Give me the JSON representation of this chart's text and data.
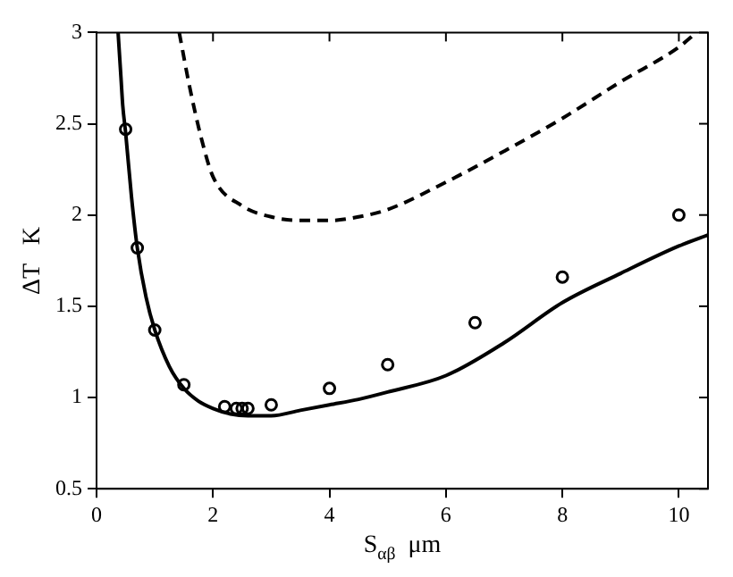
{
  "chart_data": {
    "type": "line",
    "xlabel": "S$_{αβ}$  μm",
    "ylabel": "ΔT   K",
    "xlim": [
      0,
      10.5
    ],
    "ylim": [
      0.5,
      3
    ],
    "xticks": [
      0,
      2,
      4,
      6,
      8,
      10
    ],
    "yticks": [
      0.5,
      1,
      1.5,
      2,
      2.5,
      3
    ],
    "grid": false,
    "legend": false,
    "series": [
      {
        "color": "#000000",
        "line_style": "solid",
        "marker": "none",
        "x": [
          0.37,
          0.42,
          0.45,
          0.5,
          0.6,
          0.7,
          0.85,
          1.0,
          1.25,
          1.5,
          1.75,
          2.0,
          2.3,
          2.6,
          3.0,
          3.5,
          4.0,
          4.5,
          5.0,
          6.0,
          7.0,
          8.0,
          9.0,
          10.0,
          10.5
        ],
        "values": [
          3,
          2.75,
          2.6,
          2.45,
          2.1,
          1.82,
          1.55,
          1.37,
          1.17,
          1.05,
          0.98,
          0.94,
          0.91,
          0.9,
          0.9,
          0.93,
          0.96,
          0.99,
          1.03,
          1.12,
          1.3,
          1.52,
          1.68,
          1.83,
          1.89
        ]
      },
      {
        "color": "#000000",
        "line_style": "dashed",
        "marker": "none",
        "x": [
          1.42,
          1.6,
          1.8,
          2.0,
          2.5,
          3.0,
          3.5,
          4.0,
          4.5,
          5.0,
          6.0,
          7.0,
          8.0,
          9.0,
          10.0,
          10.3
        ],
        "values": [
          3,
          2.7,
          2.42,
          2.21,
          2.05,
          1.99,
          1.97,
          1.97,
          1.99,
          2.03,
          2.18,
          2.35,
          2.53,
          2.73,
          2.92,
          3
        ]
      },
      {
        "type": "scatter",
        "color": "#000000",
        "marker": "circle",
        "x": [
          0.5,
          0.7,
          1.0,
          1.5,
          2.2,
          2.4,
          2.5,
          2.6,
          3.0,
          4.0,
          5.0,
          6.5,
          8.0,
          10.0
        ],
        "values": [
          2.47,
          1.82,
          1.37,
          1.07,
          0.95,
          0.94,
          0.94,
          0.94,
          0.96,
          1.05,
          1.18,
          1.41,
          1.66,
          2.0
        ]
      }
    ]
  }
}
